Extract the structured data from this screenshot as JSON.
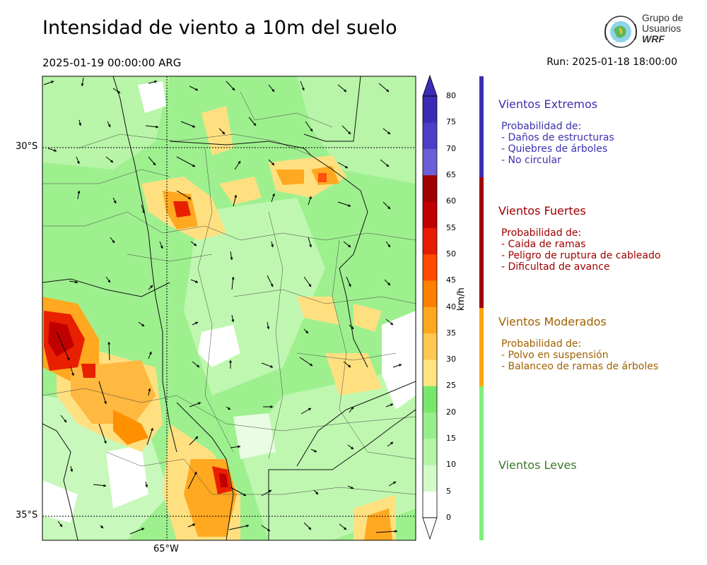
{
  "header": {
    "title": "Intensidad de viento a 10m del suelo",
    "valid_time": "2025-01-19 00:00:00 ARG",
    "run": "Run: 2025-01-18 18:00:00"
  },
  "logo": {
    "line1": "Grupo de",
    "line2": "Usuarios",
    "line3": "WRF"
  },
  "map": {
    "lat_labels": [
      "30°S",
      "35°S"
    ],
    "lon_labels": [
      "65°W"
    ]
  },
  "colorbar": {
    "units": "km/h",
    "ticks": [
      "0",
      "5",
      "10",
      "15",
      "20",
      "25",
      "30",
      "35",
      "40",
      "45",
      "50",
      "55",
      "60",
      "65",
      "70",
      "75",
      "80"
    ],
    "colors": [
      "#ffffff",
      "#d2fbc8",
      "#b4f5a8",
      "#96ef8a",
      "#78e86c",
      "#ffe480",
      "#ffc850",
      "#ffa81e",
      "#ff7f00",
      "#ff4a00",
      "#e61b00",
      "#c00000",
      "#a00000",
      "#6b5fd8",
      "#4d3ec8",
      "#3c2bb4"
    ],
    "over_color": "#3c2bb4"
  },
  "categories": [
    {
      "title": "Vientos Extremos",
      "color": "#3b30b0",
      "bar_color": "#3b30b0",
      "lines": [
        "Probabilidad de:",
        "- Daños de estructuras",
        "- Quiebres de árboles",
        "- No circular"
      ]
    },
    {
      "title": "Vientos Fuertes",
      "color": "#a00000",
      "bar_color": "#a00000",
      "lines": [
        "Probabilidad de:",
        "- Caida de ramas",
        "- Peligro de ruptura de cableado",
        "- Dificultad de avance"
      ]
    },
    {
      "title": "Vientos Moderados",
      "color": "#a06000",
      "bar_color": "#ffa500",
      "lines": [
        "Probabilidad de:",
        "- Polvo en suspensión",
        "- Balanceo de ramas de árboles"
      ]
    },
    {
      "title": "Vientos Leves",
      "color": "#3a7a2a",
      "bar_color": "#7ef07a",
      "lines": []
    }
  ]
}
